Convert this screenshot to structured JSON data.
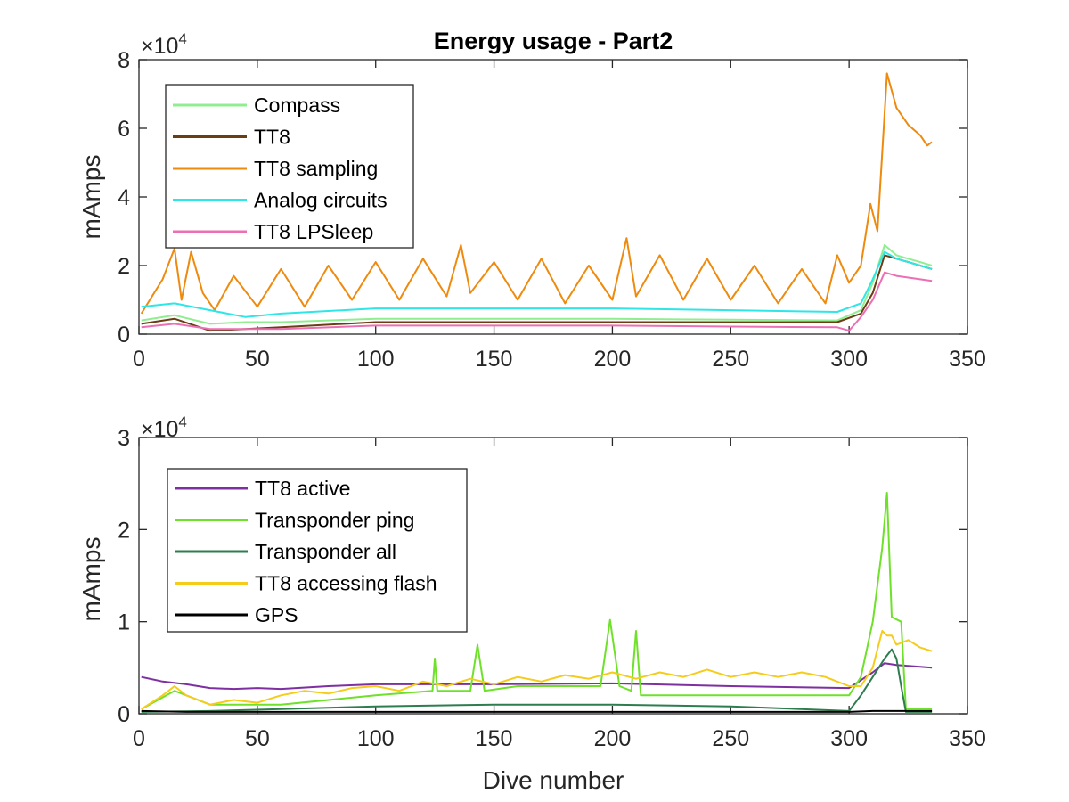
{
  "chart_data": [
    {
      "type": "line",
      "title": "Energy usage - Part2",
      "xlabel": "",
      "ylabel": "mAmps",
      "y_multiplier": "×10",
      "y_exponent": "4",
      "xlim": [
        0,
        350
      ],
      "ylim": [
        0,
        8
      ],
      "xticks": [
        "0",
        "50",
        "100",
        "150",
        "200",
        "250",
        "300",
        "350"
      ],
      "yticks": [
        "0",
        "2",
        "4",
        "6",
        "8"
      ],
      "legend_position": "top-left",
      "series": [
        {
          "name": "Compass",
          "color": "#90ee90",
          "x": [
            1,
            15,
            30,
            45,
            60,
            100,
            150,
            200,
            250,
            295,
            305,
            310,
            315,
            320,
            325,
            330,
            335
          ],
          "y": [
            0.4,
            0.55,
            0.3,
            0.35,
            0.35,
            0.45,
            0.45,
            0.45,
            0.42,
            0.4,
            0.7,
            1.5,
            2.6,
            2.3,
            2.2,
            2.1,
            2.0
          ]
        },
        {
          "name": "TT8",
          "color": "#6b3d12",
          "x": [
            1,
            15,
            30,
            45,
            60,
            100,
            150,
            200,
            250,
            295,
            305,
            310,
            315,
            320,
            325,
            330,
            335
          ],
          "y": [
            0.3,
            0.45,
            0.1,
            0.15,
            0.2,
            0.35,
            0.35,
            0.35,
            0.35,
            0.35,
            0.6,
            1.2,
            2.3,
            2.2,
            2.1,
            2.0,
            1.9
          ]
        },
        {
          "name": "TT8 sampling",
          "color": "#ee8a0e",
          "x": [
            1,
            10,
            15,
            18,
            22,
            27,
            32,
            40,
            50,
            60,
            70,
            80,
            90,
            100,
            110,
            120,
            130,
            136,
            140,
            150,
            160,
            170,
            180,
            190,
            200,
            206,
            210,
            220,
            230,
            240,
            250,
            260,
            270,
            280,
            290,
            295,
            300,
            305,
            309,
            312,
            316,
            320,
            325,
            330,
            333,
            335
          ],
          "y": [
            0.6,
            1.6,
            2.5,
            1.0,
            2.4,
            1.2,
            0.7,
            1.7,
            0.8,
            1.9,
            0.8,
            2.0,
            1.0,
            2.1,
            1.0,
            2.2,
            1.1,
            2.6,
            1.2,
            2.1,
            1.0,
            2.2,
            0.9,
            2.0,
            1.0,
            2.8,
            1.1,
            2.3,
            1.0,
            2.2,
            1.0,
            2.0,
            0.9,
            1.9,
            0.9,
            2.3,
            1.5,
            2.0,
            3.8,
            3.0,
            7.6,
            6.6,
            6.1,
            5.8,
            5.5,
            5.6
          ]
        },
        {
          "name": "Analog circuits",
          "color": "#2ee6e6",
          "x": [
            1,
            15,
            30,
            45,
            60,
            100,
            150,
            200,
            250,
            295,
            305,
            310,
            315,
            320,
            325,
            330,
            335
          ],
          "y": [
            0.8,
            0.9,
            0.7,
            0.5,
            0.6,
            0.75,
            0.75,
            0.75,
            0.7,
            0.65,
            0.9,
            1.6,
            2.4,
            2.2,
            2.1,
            2.0,
            1.9
          ]
        },
        {
          "name": "TT8 LPSleep",
          "color": "#ec6fb4",
          "x": [
            1,
            15,
            30,
            45,
            60,
            100,
            150,
            200,
            250,
            295,
            300,
            305,
            310,
            315,
            320,
            325,
            330,
            335
          ],
          "y": [
            0.2,
            0.3,
            0.15,
            0.15,
            0.15,
            0.25,
            0.25,
            0.25,
            0.22,
            0.2,
            0.1,
            0.5,
            1.0,
            1.8,
            1.7,
            1.65,
            1.6,
            1.55
          ]
        }
      ]
    },
    {
      "type": "line",
      "title": "",
      "xlabel": "Dive number",
      "ylabel": "mAmps",
      "y_multiplier": "×10",
      "y_exponent": "4",
      "xlim": [
        0,
        350
      ],
      "ylim": [
        0,
        3
      ],
      "xticks": [
        "0",
        "50",
        "100",
        "150",
        "200",
        "250",
        "300",
        "350"
      ],
      "yticks": [
        "0",
        "1",
        "2",
        "3"
      ],
      "legend_position": "top-left",
      "series": [
        {
          "name": "TT8 active",
          "color": "#7e2fa0",
          "x": [
            1,
            10,
            20,
            30,
            40,
            50,
            60,
            80,
            100,
            150,
            200,
            250,
            300,
            310,
            315,
            320,
            330,
            335
          ],
          "y": [
            0.4,
            0.35,
            0.32,
            0.28,
            0.27,
            0.28,
            0.27,
            0.3,
            0.32,
            0.32,
            0.33,
            0.3,
            0.28,
            0.45,
            0.55,
            0.53,
            0.51,
            0.5
          ]
        },
        {
          "name": "Transponder ping",
          "color": "#6fe12a",
          "x": [
            1,
            15,
            20,
            30,
            60,
            100,
            124,
            125,
            126,
            140,
            143,
            146,
            160,
            195,
            199,
            203,
            208,
            210,
            212,
            240,
            280,
            300,
            305,
            310,
            314,
            316,
            318,
            322,
            324,
            330,
            335
          ],
          "y": [
            0.05,
            0.25,
            0.2,
            0.1,
            0.1,
            0.2,
            0.25,
            0.6,
            0.25,
            0.25,
            0.75,
            0.25,
            0.3,
            0.3,
            1.02,
            0.3,
            0.25,
            0.9,
            0.2,
            0.2,
            0.2,
            0.2,
            0.4,
            1.0,
            1.8,
            2.4,
            1.05,
            1.0,
            0.05,
            0.05,
            0.05
          ]
        },
        {
          "name": "Transponder all",
          "color": "#2e7d4f",
          "x": [
            1,
            30,
            60,
            100,
            150,
            200,
            250,
            300,
            305,
            310,
            315,
            318,
            320,
            322,
            324,
            330,
            335
          ],
          "y": [
            0.02,
            0.03,
            0.05,
            0.08,
            0.1,
            0.1,
            0.08,
            0.03,
            0.2,
            0.4,
            0.6,
            0.7,
            0.6,
            0.3,
            0.02,
            0.02,
            0.02
          ]
        },
        {
          "name": "TT8 accessing flash",
          "color": "#f5cc1c",
          "x": [
            1,
            10,
            15,
            20,
            25,
            30,
            40,
            50,
            60,
            70,
            80,
            90,
            100,
            110,
            120,
            130,
            140,
            150,
            160,
            170,
            180,
            190,
            200,
            210,
            220,
            230,
            240,
            250,
            260,
            270,
            280,
            290,
            300,
            305,
            310,
            314,
            316,
            318,
            320,
            325,
            330,
            335
          ],
          "y": [
            0.05,
            0.2,
            0.3,
            0.2,
            0.15,
            0.1,
            0.15,
            0.12,
            0.2,
            0.25,
            0.22,
            0.28,
            0.3,
            0.25,
            0.35,
            0.3,
            0.38,
            0.32,
            0.4,
            0.35,
            0.42,
            0.38,
            0.45,
            0.38,
            0.45,
            0.4,
            0.48,
            0.4,
            0.45,
            0.4,
            0.45,
            0.4,
            0.3,
            0.3,
            0.5,
            0.9,
            0.85,
            0.85,
            0.75,
            0.8,
            0.72,
            0.68
          ]
        },
        {
          "name": "GPS",
          "color": "#000000",
          "x": [
            1,
            20,
            50,
            100,
            150,
            200,
            250,
            300,
            310,
            320,
            330,
            335
          ],
          "y": [
            0.03,
            0.02,
            0.02,
            0.02,
            0.02,
            0.02,
            0.02,
            0.02,
            0.03,
            0.03,
            0.03,
            0.03
          ]
        }
      ]
    }
  ]
}
